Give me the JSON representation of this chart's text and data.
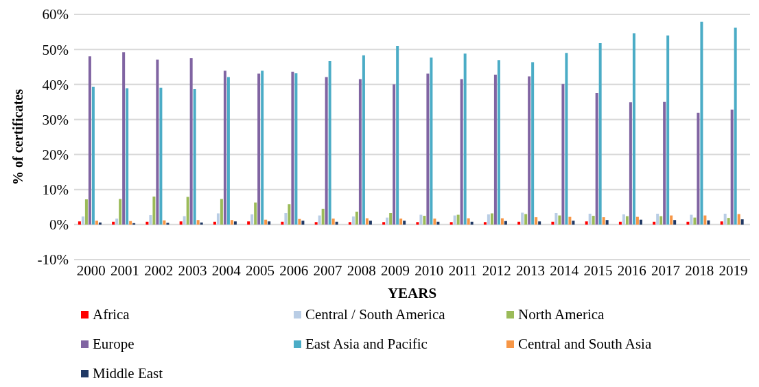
{
  "chart_data": {
    "type": "bar",
    "xlabel": "YEARS",
    "ylabel": "% of certificates",
    "categories": [
      "2000",
      "2001",
      "2002",
      "2003",
      "2004",
      "2005",
      "2006",
      "2007",
      "2008",
      "2009",
      "2010",
      "2011",
      "2012",
      "2013",
      "2014",
      "2015",
      "2016",
      "2017",
      "2018",
      "2019"
    ],
    "series": [
      {
        "name": "Africa",
        "color": "#ff0000",
        "values": [
          0.9,
          0.8,
          0.8,
          0.9,
          0.8,
          0.9,
          0.8,
          0.7,
          0.7,
          0.7,
          0.7,
          0.7,
          0.7,
          0.8,
          0.8,
          0.9,
          0.8,
          0.8,
          0.8,
          0.9
        ]
      },
      {
        "name": "Central / South America",
        "color": "#b9cde5",
        "values": [
          2.3,
          1.7,
          2.7,
          2.4,
          3.2,
          2.9,
          3.3,
          2.6,
          2.3,
          2.0,
          2.8,
          2.6,
          2.9,
          3.4,
          3.3,
          3.1,
          2.9,
          3.1,
          2.8,
          3.1
        ]
      },
      {
        "name": "North America",
        "color": "#9bbb59",
        "values": [
          7.2,
          7.3,
          8.0,
          7.9,
          7.3,
          6.3,
          5.8,
          4.5,
          3.7,
          3.3,
          2.5,
          2.8,
          3.2,
          3.0,
          2.6,
          2.5,
          2.4,
          2.4,
          2.0,
          1.9
        ]
      },
      {
        "name": "Europe",
        "color": "#8064a2",
        "values": [
          48.0,
          49.2,
          47.1,
          47.5,
          43.9,
          43.1,
          43.6,
          42.1,
          41.5,
          40.0,
          43.1,
          41.5,
          42.8,
          42.3,
          40.1,
          37.5,
          34.9,
          35.0,
          31.9,
          32.8
        ]
      },
      {
        "name": "East Asia and Pacific",
        "color": "#4bacc6",
        "values": [
          39.3,
          38.9,
          39.1,
          38.7,
          42.1,
          43.9,
          43.2,
          46.7,
          48.3,
          51.0,
          47.7,
          48.8,
          46.9,
          46.3,
          49.0,
          51.8,
          54.6,
          54.0,
          57.9,
          56.2
        ]
      },
      {
        "name": "Central and South Asia",
        "color": "#f79646",
        "values": [
          1.1,
          1.0,
          1.2,
          1.3,
          1.3,
          1.4,
          1.6,
          1.7,
          1.8,
          1.7,
          1.7,
          1.8,
          1.8,
          2.1,
          2.2,
          2.1,
          2.2,
          2.6,
          2.6,
          3.0
        ]
      },
      {
        "name": "Middle East",
        "color": "#1f3864",
        "values": [
          0.6,
          0.4,
          0.5,
          0.6,
          0.9,
          0.9,
          1.1,
          0.8,
          1.1,
          1.1,
          0.8,
          0.8,
          1.0,
          0.9,
          1.1,
          1.3,
          1.4,
          1.3,
          1.2,
          1.5
        ]
      }
    ],
    "ylim": [
      -10,
      60
    ],
    "yticks": [
      {
        "value": -10,
        "label": "-10%"
      },
      {
        "value": 0,
        "label": "0%"
      },
      {
        "value": 10,
        "label": "10%"
      },
      {
        "value": 20,
        "label": "20%"
      },
      {
        "value": 30,
        "label": "30%"
      },
      {
        "value": 40,
        "label": "40%"
      },
      {
        "value": 50,
        "label": "50%"
      },
      {
        "value": 60,
        "label": "60%"
      }
    ],
    "grid": "y",
    "legend": "bottom"
  }
}
